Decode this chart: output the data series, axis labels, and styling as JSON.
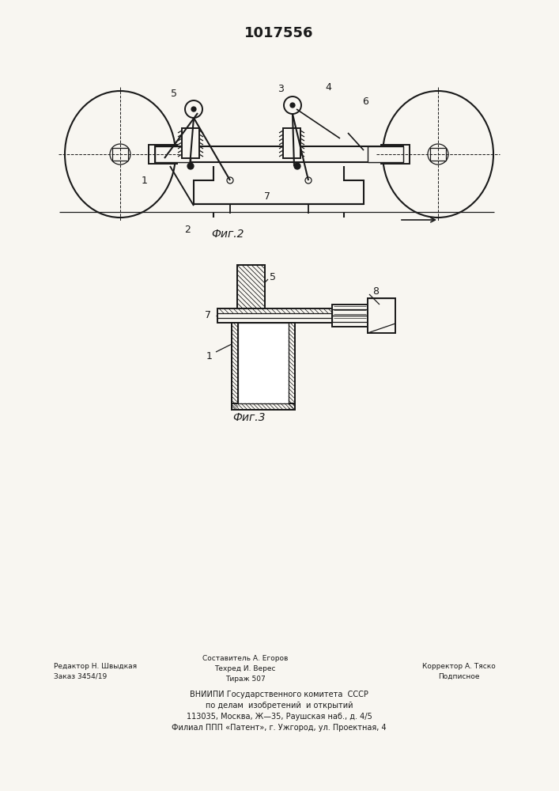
{
  "title": "1017556",
  "fig2_label": "Фиг.2",
  "fig3_label": "Фиг.3",
  "bg_color": "#f8f6f1",
  "line_color": "#1a1a1a",
  "lw_main": 1.4,
  "lw_thin": 0.9,
  "lw_dashed": 0.7
}
